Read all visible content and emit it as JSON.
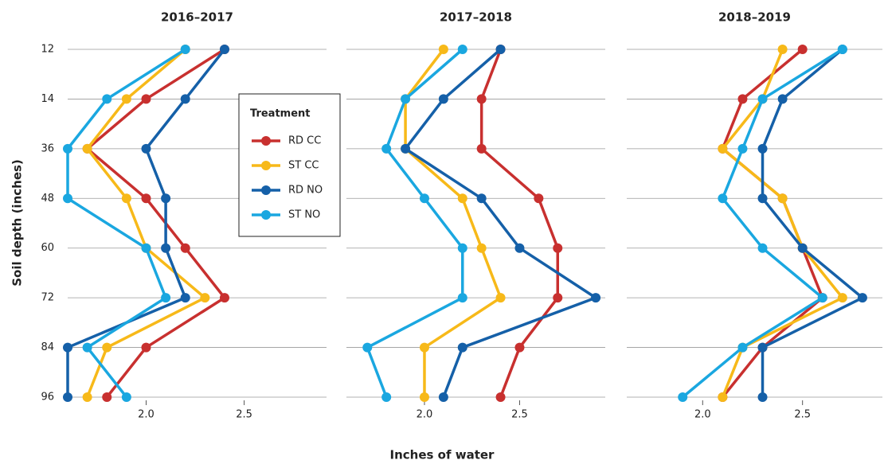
{
  "chart_data": [
    {
      "type": "line",
      "title": "2016–2017",
      "ylabel": "Soil depth (inches)",
      "legend_title": "Treatment",
      "categories": [
        "12",
        "14",
        "36",
        "48",
        "60",
        "72",
        "84",
        "96"
      ],
      "xlim": [
        1.6,
        2.92
      ],
      "xticks": [
        {
          "value": 2,
          "label": "2.0"
        },
        {
          "value": 2.5,
          "label": "2.5"
        }
      ],
      "grid": true,
      "series": [
        {
          "name": "RD CC",
          "color": "#c8302f",
          "values": [
            2.4,
            2.0,
            1.7,
            2.0,
            2.2,
            2.4,
            2.0,
            1.8
          ]
        },
        {
          "name": "ST CC",
          "color": "#f7b919",
          "values": [
            2.2,
            1.9,
            1.7,
            1.9,
            2.0,
            2.3,
            1.8,
            1.7
          ]
        },
        {
          "name": "RD NO",
          "color": "#1560a8",
          "values": [
            2.4,
            2.2,
            2.0,
            2.1,
            2.1,
            2.2,
            1.6,
            1.6
          ]
        },
        {
          "name": "ST NO",
          "color": "#1aa7e0",
          "values": [
            2.2,
            1.8,
            1.6,
            1.6,
            2.0,
            2.1,
            1.7,
            1.9
          ]
        }
      ]
    },
    {
      "type": "line",
      "title": "2017–2018",
      "xlabel": "Inches of water",
      "xlim": [
        1.59,
        2.95
      ],
      "xticks": [
        {
          "value": 2,
          "label": "2.0"
        },
        {
          "value": 2.5,
          "label": "2.5"
        }
      ],
      "grid": true,
      "series": [
        {
          "color": "#c8302f",
          "values": [
            2.4,
            2.3,
            2.3,
            2.6,
            2.7,
            2.7,
            2.5,
            2.4
          ]
        },
        {
          "color": "#f7b919",
          "values": [
            2.1,
            1.9,
            1.9,
            2.2,
            2.3,
            2.4,
            2.0,
            2.0
          ]
        },
        {
          "color": "#1560a8",
          "values": [
            2.4,
            2.1,
            1.9,
            2.3,
            2.5,
            2.9,
            2.2,
            2.1
          ]
        },
        {
          "color": "#1aa7e0",
          "values": [
            2.2,
            1.9,
            1.8,
            2.0,
            2.2,
            2.2,
            1.7,
            1.8
          ]
        }
      ]
    },
    {
      "type": "line",
      "title": "2018–2019",
      "xlim": [
        1.62,
        2.9
      ],
      "xticks": [
        {
          "value": 2,
          "label": "2.0"
        },
        {
          "value": 2.5,
          "label": "2.5"
        }
      ],
      "grid": true,
      "series": [
        {
          "color": "#c8302f",
          "values": [
            2.5,
            2.2,
            2.1,
            2.4,
            2.5,
            2.6,
            2.3,
            2.1
          ]
        },
        {
          "color": "#f7b919",
          "values": [
            2.4,
            2.3,
            2.1,
            2.4,
            2.5,
            2.7,
            2.2,
            2.1
          ]
        },
        {
          "color": "#1560a8",
          "values": [
            2.7,
            2.4,
            2.3,
            2.3,
            2.5,
            2.8,
            2.3,
            2.3
          ]
        },
        {
          "color": "#1aa7e0",
          "values": [
            2.7,
            2.3,
            2.2,
            2.1,
            2.3,
            2.6,
            2.2,
            1.9
          ]
        }
      ]
    }
  ]
}
